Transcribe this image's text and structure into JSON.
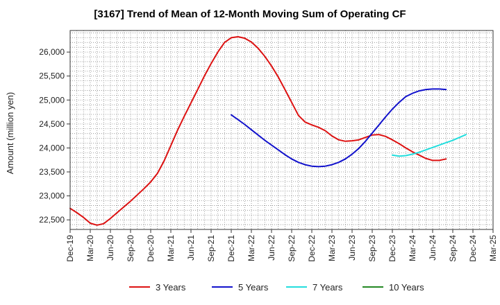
{
  "chart_data": {
    "type": "line",
    "title": "[3167]  Trend of Mean of 12-Month Moving Sum of Operating CF",
    "xlabel": "",
    "ylabel": "Amount (million yen)",
    "ylim": [
      22300,
      26450
    ],
    "yticks": [
      22500,
      23000,
      23500,
      24000,
      24500,
      25000,
      25500,
      26000
    ],
    "ytick_labels": [
      "22,500",
      "23,000",
      "23,500",
      "24,000",
      "24,500",
      "25,000",
      "25,500",
      "26,000"
    ],
    "x_start": "Dec-19",
    "x_end": "Mar-25",
    "xtick_labels": [
      "Dec-19",
      "Mar-20",
      "Jun-20",
      "Sep-20",
      "Dec-20",
      "Mar-21",
      "Jun-21",
      "Sep-21",
      "Dec-21",
      "Mar-22",
      "Jun-22",
      "Sep-22",
      "Dec-22",
      "Mar-23",
      "Jun-23",
      "Sep-23",
      "Dec-23",
      "Mar-24",
      "Jun-24",
      "Sep-24",
      "Dec-24",
      "Mar-25"
    ],
    "grid": true,
    "legend_position": "bottom",
    "series": [
      {
        "name": "3 Years",
        "color": "#dd1111",
        "start_index": 0,
        "values": [
          22740,
          22650,
          22550,
          22430,
          22390,
          22420,
          22530,
          22650,
          22770,
          22890,
          23020,
          23150,
          23290,
          23470,
          23730,
          24050,
          24370,
          24660,
          24940,
          25220,
          25500,
          25760,
          26000,
          26200,
          26300,
          26320,
          26290,
          26210,
          26080,
          25910,
          25710,
          25480,
          25220,
          24950,
          24680,
          24540,
          24480,
          24430,
          24360,
          24250,
          24170,
          24140,
          24150,
          24170,
          24220,
          24270,
          24280,
          24240,
          24170,
          24090,
          24000,
          23920,
          23850,
          23780,
          23740,
          23740,
          23770
        ]
      },
      {
        "name": "5 Years",
        "color": "#1111cc",
        "start_index": 24,
        "values": [
          24690,
          24590,
          24490,
          24380,
          24270,
          24160,
          24060,
          23960,
          23860,
          23770,
          23700,
          23650,
          23620,
          23610,
          23620,
          23650,
          23700,
          23770,
          23870,
          23990,
          24140,
          24310,
          24480,
          24650,
          24810,
          24950,
          25070,
          25140,
          25190,
          25220,
          25230,
          25230,
          25220
        ]
      },
      {
        "name": "7 Years",
        "color": "#22dddd",
        "start_index": 48,
        "values": [
          23850,
          23830,
          23840,
          23870,
          23910,
          23960,
          24010,
          24060,
          24110,
          24160,
          24220,
          24280
        ]
      },
      {
        "name": "10 Years",
        "color": "#228822",
        "start_index": 0,
        "values": []
      }
    ]
  }
}
